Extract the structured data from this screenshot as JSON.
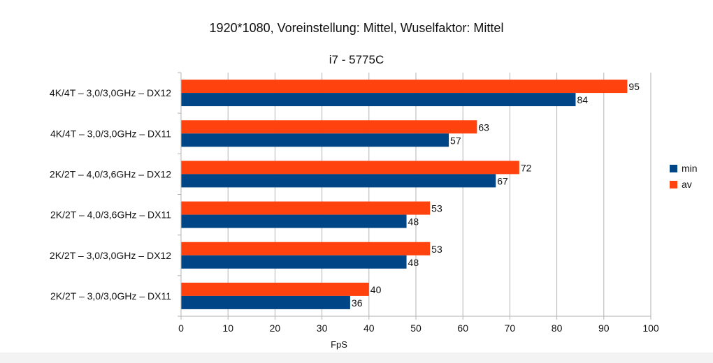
{
  "chart_data": {
    "type": "bar",
    "orientation": "horizontal",
    "title": "1920*1080, Voreinstellung: Mittel, Wuselfaktor: Mittel",
    "subtitle": "i7 - 5775C",
    "xlabel": "FpS",
    "ylabel": "",
    "xlim": [
      0,
      100
    ],
    "xticks": [
      0,
      10,
      20,
      30,
      40,
      50,
      60,
      70,
      80,
      90,
      100
    ],
    "grid": true,
    "legend_position": "right",
    "categories": [
      "4K/4T – 3,0/3,0GHz – DX12",
      "4K/4T – 3,0/3,0GHz – DX11",
      "2K/2T – 4,0/3,6GHz – DX12",
      "2K/2T – 4,0/3,6GHz – DX11",
      "2K/2T – 3,0/3,0GHz – DX12",
      "2K/2T – 3,0/3,0GHz – DX11"
    ],
    "series": [
      {
        "name": "min",
        "color": "#004586",
        "values": [
          84,
          57,
          67,
          48,
          48,
          36
        ]
      },
      {
        "name": "av",
        "color": "#ff420e",
        "values": [
          95,
          63,
          72,
          53,
          53,
          40
        ]
      }
    ]
  }
}
